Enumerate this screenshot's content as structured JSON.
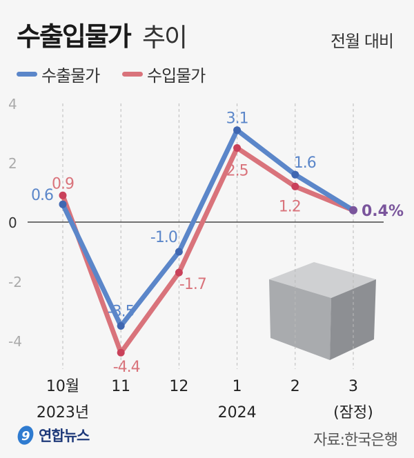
{
  "header": {
    "title": "수출입물가",
    "title_suffix": "추이",
    "basis": "전월 대비"
  },
  "legend": [
    {
      "label": "수출물가",
      "color": "#5b86c9"
    },
    {
      "label": "수입물가",
      "color": "#d9737b"
    }
  ],
  "footer": {
    "logo": "연합뉴스",
    "source": "자료:한국은행"
  },
  "chart_data": {
    "type": "line",
    "categories": [
      "10월",
      "11",
      "12",
      "1",
      "2",
      "3"
    ],
    "category_sublabels": [
      "2023년",
      "",
      "",
      "2024",
      "",
      "(잠정)"
    ],
    "ylim": [
      -5,
      4.5
    ],
    "yticks": [
      4,
      2,
      0,
      -2,
      -4
    ],
    "ytick_labels": [
      "4",
      "2",
      "0",
      "-2",
      "-4"
    ],
    "grid": "vertical dashed",
    "series": [
      {
        "name": "수출물가",
        "color": "#5b86c9",
        "values": [
          0.6,
          -3.5,
          -1.0,
          3.1,
          1.6,
          0.4
        ],
        "labels": [
          "0.6",
          "-3.5",
          "-1.0",
          "3.1",
          "1.6",
          ""
        ]
      },
      {
        "name": "수입물가",
        "color": "#d9737b",
        "values": [
          0.9,
          -4.4,
          -1.7,
          2.5,
          1.2,
          0.4
        ],
        "labels": [
          "0.9",
          "-4.4",
          "-1.7",
          "2.5",
          "1.2",
          ""
        ]
      }
    ],
    "final_label": "0.4%",
    "final_color": "#7a559c"
  }
}
